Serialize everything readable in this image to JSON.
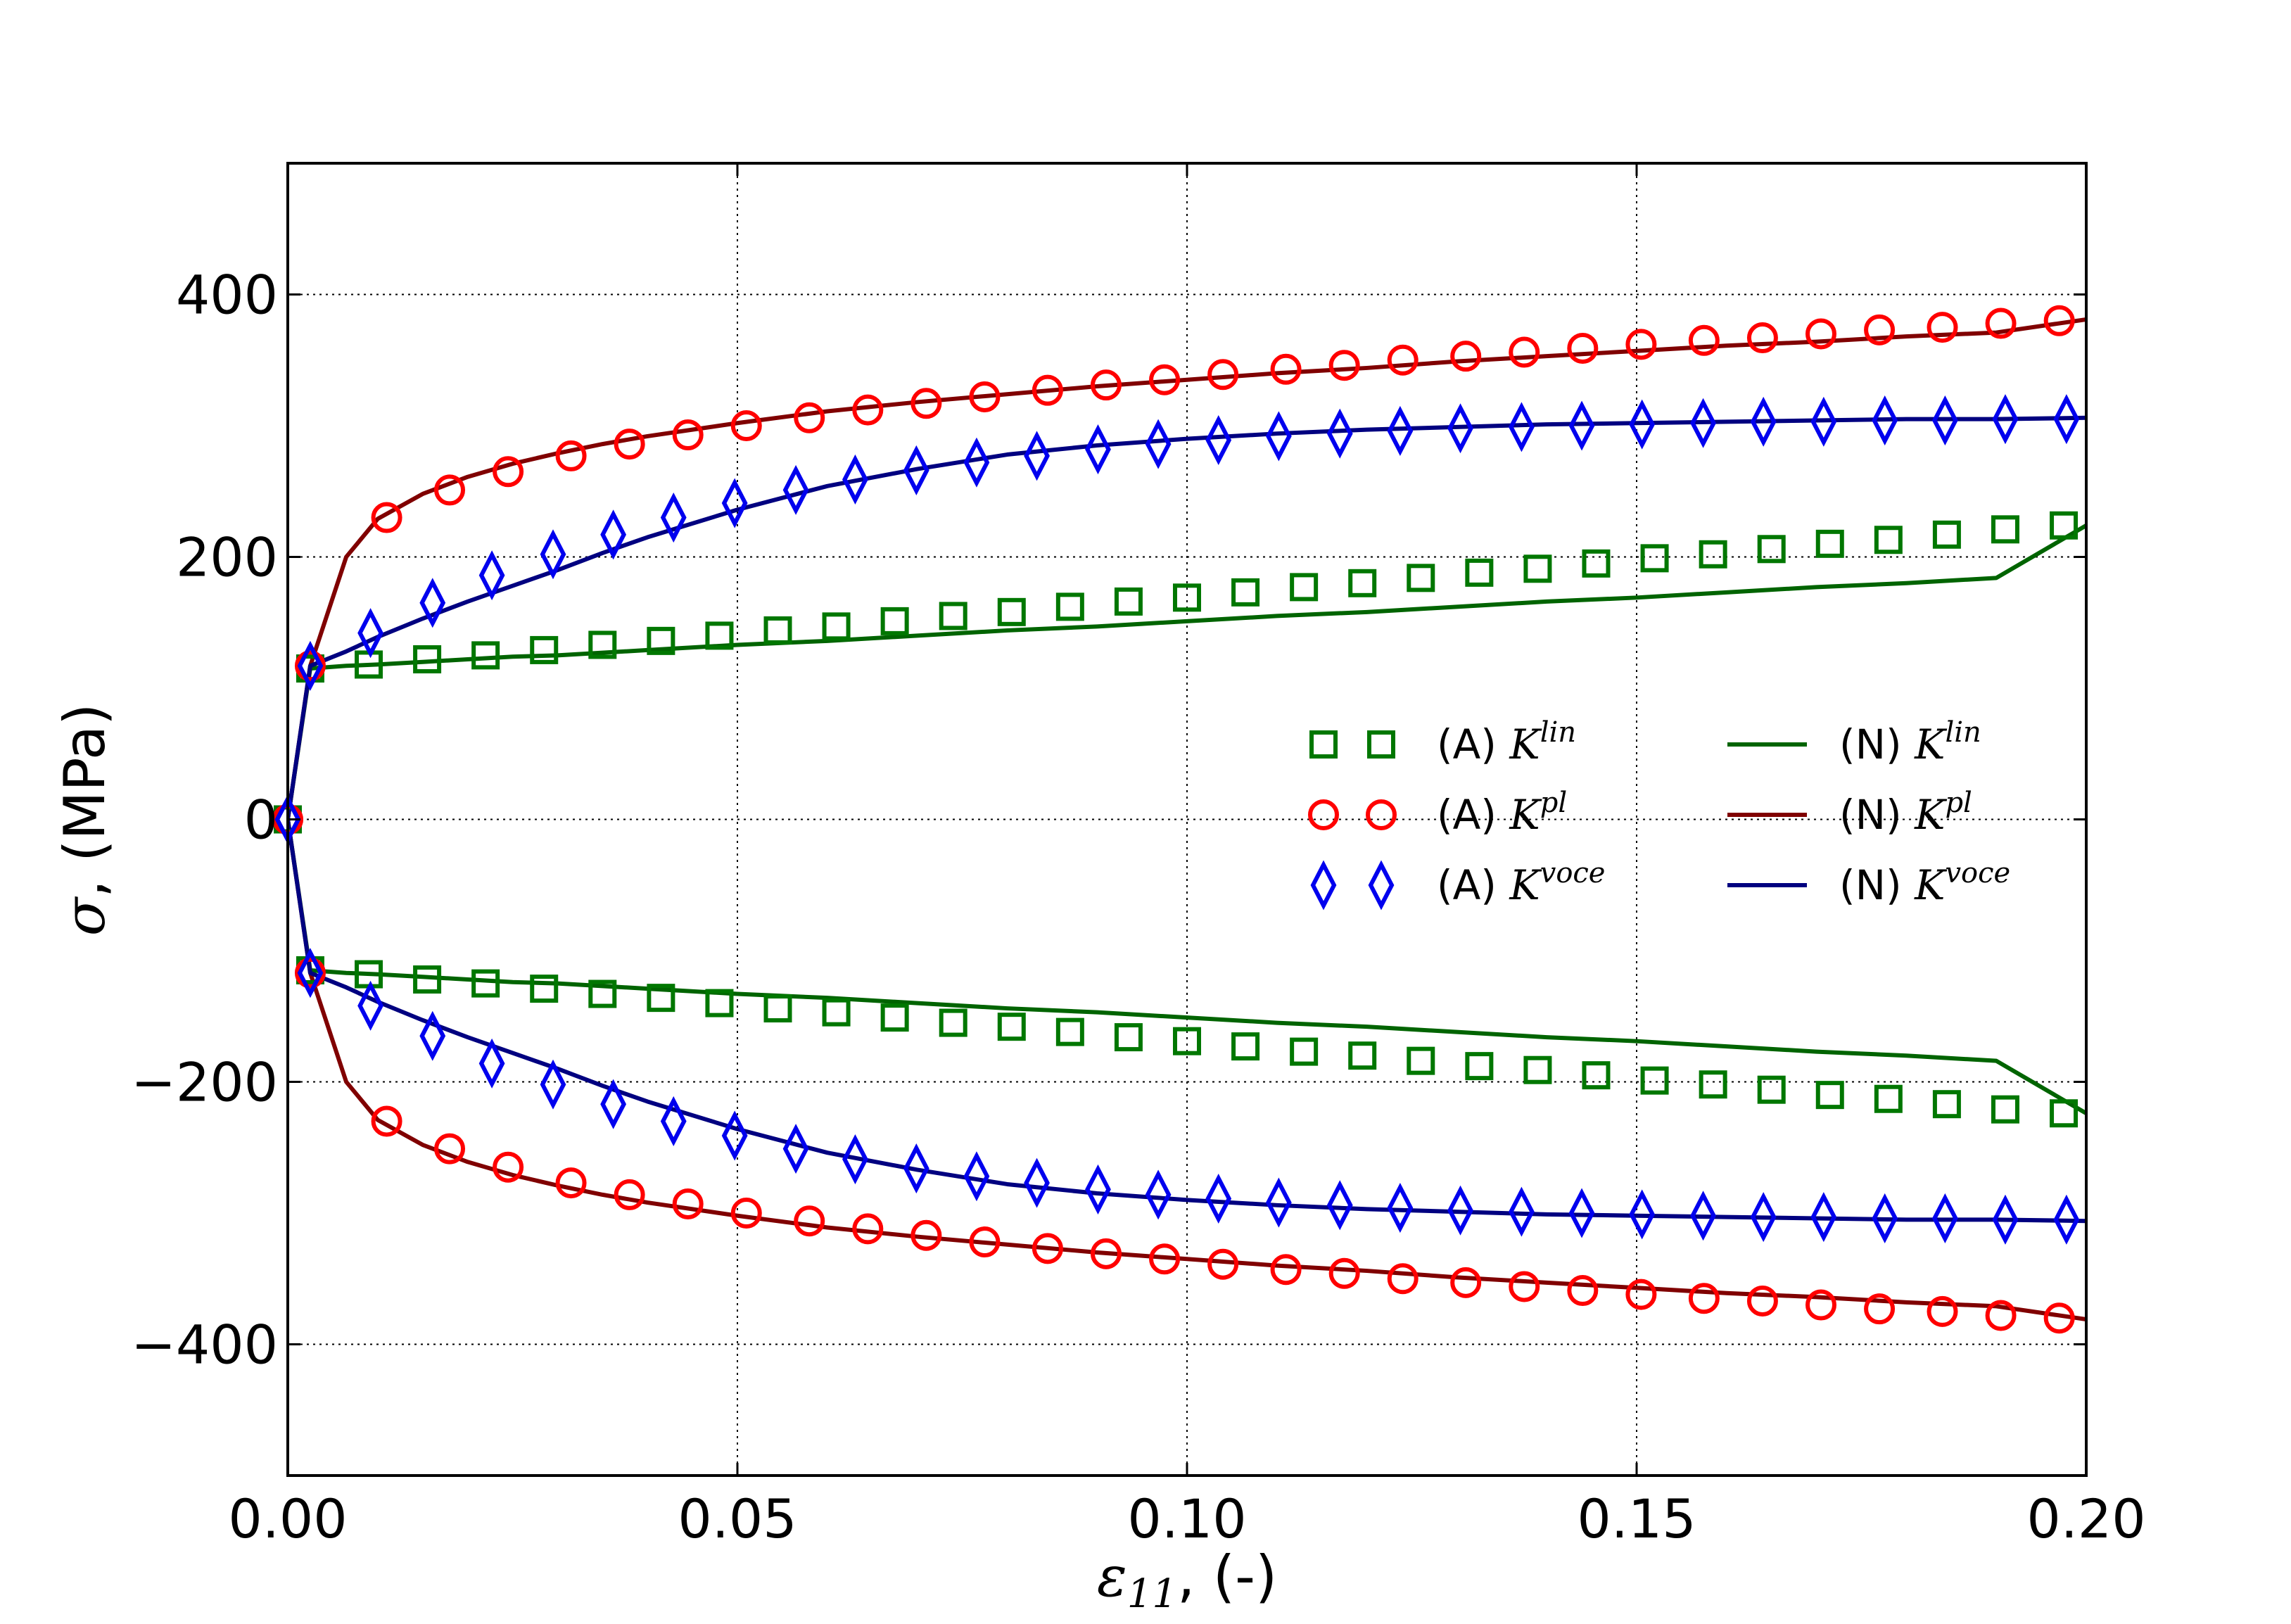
{
  "chart_data": {
    "type": "line",
    "xlim": [
      0.0,
      0.2
    ],
    "ylim": [
      -500,
      500
    ],
    "x_ticks": [
      {
        "value": 0.0,
        "label": "0.00"
      },
      {
        "value": 0.05,
        "label": "0.05"
      },
      {
        "value": 0.1,
        "label": "0.10"
      },
      {
        "value": 0.15,
        "label": "0.15"
      },
      {
        "value": 0.2,
        "label": "0.20"
      }
    ],
    "y_ticks": [
      {
        "value": -400,
        "label": "−400"
      },
      {
        "value": -200,
        "label": "−200"
      },
      {
        "value": 0,
        "label": "0"
      },
      {
        "value": 200,
        "label": "200"
      },
      {
        "value": 400,
        "label": "400"
      }
    ],
    "xlabel": {
      "symbol": "ε",
      "subscript": "11",
      "suffix": ", (-)"
    },
    "ylabel": {
      "symbol": "σ",
      "suffix": ", (MPa)"
    },
    "grid": true,
    "legend_position": "center-right",
    "x_samples": [
      0,
      0.0025,
      0.0065,
      0.01,
      0.015,
      0.02,
      0.025,
      0.03,
      0.035,
      0.04,
      0.05,
      0.06,
      0.07,
      0.08,
      0.09,
      0.1,
      0.11,
      0.12,
      0.13,
      0.14,
      0.15,
      0.16,
      0.17,
      0.18,
      0.19,
      0.2
    ],
    "series": [
      {
        "name": "(A) K",
        "sup": "lin",
        "kind": "analytical",
        "marker": "square",
        "color": "#007700",
        "upper": [
          [
            0.0,
            0
          ],
          [
            0.0025,
            115
          ],
          [
            0.009,
            118
          ],
          [
            0.0155,
            122
          ],
          [
            0.022,
            125
          ],
          [
            0.0285,
            129
          ],
          [
            0.035,
            133
          ],
          [
            0.0415,
            136
          ],
          [
            0.048,
            140
          ],
          [
            0.0545,
            144
          ],
          [
            0.061,
            147
          ],
          [
            0.0675,
            151
          ],
          [
            0.074,
            155
          ],
          [
            0.0805,
            158
          ],
          [
            0.087,
            162
          ],
          [
            0.0935,
            166
          ],
          [
            0.1,
            169
          ],
          [
            0.1065,
            173
          ],
          [
            0.113,
            177
          ],
          [
            0.1195,
            180
          ],
          [
            0.126,
            184
          ],
          [
            0.1325,
            188
          ],
          [
            0.139,
            191
          ],
          [
            0.1455,
            195
          ],
          [
            0.152,
            199
          ],
          [
            0.1585,
            202
          ],
          [
            0.165,
            206
          ],
          [
            0.1715,
            210
          ],
          [
            0.178,
            213
          ],
          [
            0.1845,
            217
          ],
          [
            0.191,
            221
          ],
          [
            0.1975,
            224
          ]
        ]
      },
      {
        "name": "(A) K",
        "sup": "pl",
        "kind": "analytical",
        "marker": "circle",
        "color": "#ff0000",
        "upper": [
          [
            0.0,
            0
          ],
          [
            0.0025,
            117
          ],
          [
            0.011,
            230
          ],
          [
            0.018,
            251
          ],
          [
            0.0245,
            265
          ],
          [
            0.0315,
            277
          ],
          [
            0.038,
            286
          ],
          [
            0.0445,
            293
          ],
          [
            0.051,
            300
          ],
          [
            0.058,
            306
          ],
          [
            0.0645,
            312
          ],
          [
            0.071,
            317
          ],
          [
            0.0775,
            322
          ],
          [
            0.0845,
            327
          ],
          [
            0.091,
            331
          ],
          [
            0.0975,
            335
          ],
          [
            0.104,
            339
          ],
          [
            0.111,
            343
          ],
          [
            0.1175,
            346
          ],
          [
            0.124,
            350
          ],
          [
            0.131,
            353
          ],
          [
            0.1375,
            356
          ],
          [
            0.144,
            359
          ],
          [
            0.1505,
            362
          ],
          [
            0.1575,
            365
          ],
          [
            0.164,
            367
          ],
          [
            0.1705,
            370
          ],
          [
            0.177,
            373
          ],
          [
            0.184,
            375
          ],
          [
            0.1905,
            378
          ],
          [
            0.197,
            380
          ]
        ]
      },
      {
        "name": "(A) K",
        "sup": "voce",
        "kind": "analytical",
        "marker": "diamond",
        "color": "#0000ee",
        "upper": [
          [
            0.0,
            0
          ],
          [
            0.0025,
            117
          ],
          [
            0.0092,
            142
          ],
          [
            0.0161,
            165
          ],
          [
            0.0227,
            186
          ],
          [
            0.0295,
            202
          ],
          [
            0.0362,
            217
          ],
          [
            0.0429,
            230
          ],
          [
            0.0497,
            241
          ],
          [
            0.0565,
            251
          ],
          [
            0.0631,
            259
          ],
          [
            0.0699,
            266
          ],
          [
            0.0766,
            272
          ],
          [
            0.0833,
            277
          ],
          [
            0.0901,
            282
          ],
          [
            0.0968,
            286
          ],
          [
            0.1035,
            289
          ],
          [
            0.1102,
            292
          ],
          [
            0.117,
            294
          ],
          [
            0.1237,
            296
          ],
          [
            0.1304,
            298
          ],
          [
            0.1372,
            299
          ],
          [
            0.1439,
            300
          ],
          [
            0.1506,
            301
          ],
          [
            0.1574,
            302
          ],
          [
            0.1641,
            303
          ],
          [
            0.1708,
            303
          ],
          [
            0.1776,
            304
          ],
          [
            0.1843,
            304
          ],
          [
            0.191,
            305
          ],
          [
            0.1978,
            305
          ]
        ]
      },
      {
        "name": "(N) K",
        "sup": "lin",
        "kind": "numerical",
        "color": "#006400",
        "upper": [
          115,
          115,
          117,
          118,
          120,
          122,
          124,
          125,
          127,
          129,
          133,
          136,
          140,
          144,
          147,
          151,
          155,
          158,
          162,
          166,
          169,
          173,
          177,
          180,
          184,
          224
        ]
      },
      {
        "name": "(N) K",
        "sup": "pl",
        "kind": "numerical",
        "color": "#800000",
        "upper": [
          0,
          117,
          200,
          229,
          248,
          261,
          271,
          279,
          286,
          292,
          302,
          311,
          318,
          324,
          330,
          335,
          340,
          344,
          349,
          353,
          357,
          361,
          364,
          368,
          371,
          381
        ]
      },
      {
        "name": "(N) K",
        "sup": "voce",
        "kind": "numerical",
        "color": "#000080",
        "upper": [
          0,
          117,
          128,
          139,
          153,
          166,
          178,
          190,
          203,
          215,
          236,
          254,
          267,
          278,
          285,
          290,
          294,
          297,
          299,
          301,
          302,
          303,
          304,
          305,
          305,
          306
        ]
      }
    ]
  }
}
